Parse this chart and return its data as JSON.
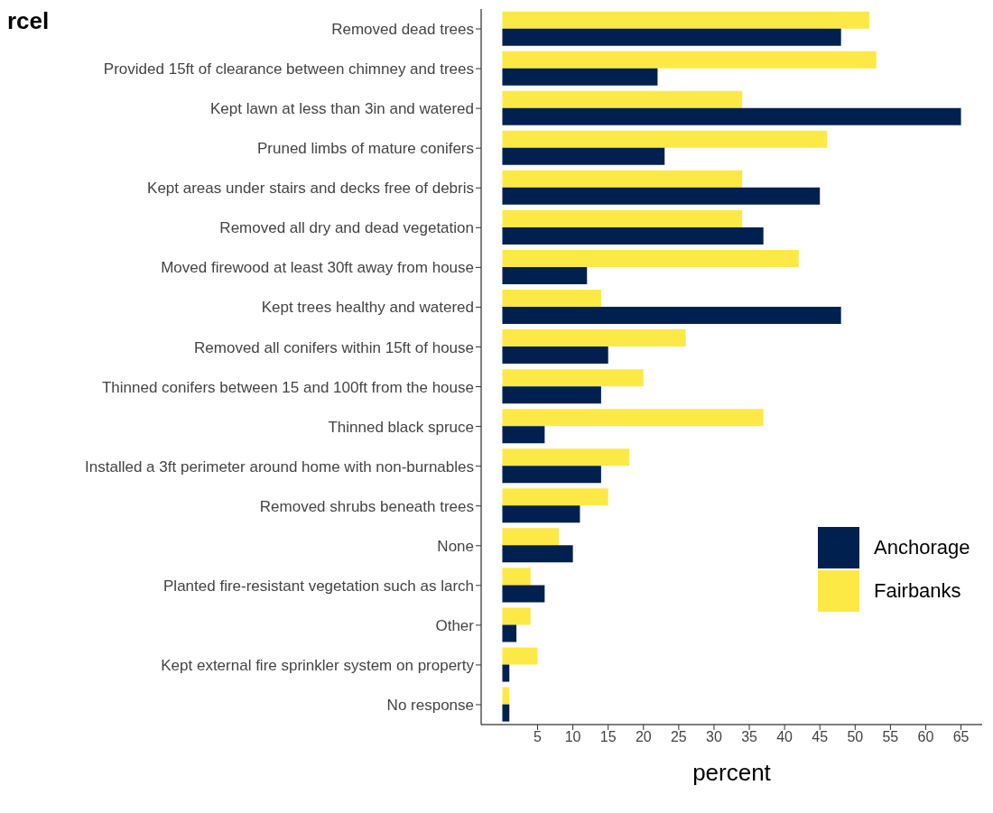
{
  "chart_data": {
    "type": "bar",
    "orientation": "horizontal",
    "title": "rcel",
    "xlabel": "percent",
    "categories": [
      "Removed dead trees",
      "Provided 15ft of clearance between chimney and trees",
      "Kept lawn at less than 3in and watered",
      "Pruned limbs of mature conifers",
      "Kept areas under stairs and decks free of debris",
      "Removed all dry and dead vegetation",
      "Moved firewood at least 30ft away from house",
      "Kept trees healthy and watered",
      "Removed all conifers within 15ft of house",
      "Thinned conifers between 15 and 100ft from the house",
      "Thinned black spruce",
      "Installed a 3ft perimeter around home with non-burnables",
      "Removed shrubs beneath trees",
      "None",
      "Planted fire-resistant vegetation such as larch",
      "Other",
      "Kept external fire sprinkler system on property",
      "No response"
    ],
    "series": [
      {
        "name": "Anchorage",
        "color": "#002150",
        "values": [
          48,
          22,
          65,
          23,
          45,
          37,
          12,
          48,
          15,
          14,
          6,
          14,
          11,
          10,
          6,
          2,
          1,
          1
        ]
      },
      {
        "name": "Fairbanks",
        "color": "#fde945",
        "values": [
          52,
          53,
          34,
          46,
          34,
          34,
          42,
          14,
          26,
          20,
          37,
          18,
          15,
          8,
          4,
          4,
          5,
          1
        ]
      }
    ],
    "xlim": [
      -3,
      68
    ],
    "xticks": [
      5,
      10,
      15,
      20,
      25,
      30,
      35,
      40,
      45,
      50,
      55,
      60,
      65
    ],
    "grid": false,
    "legend": "right"
  }
}
